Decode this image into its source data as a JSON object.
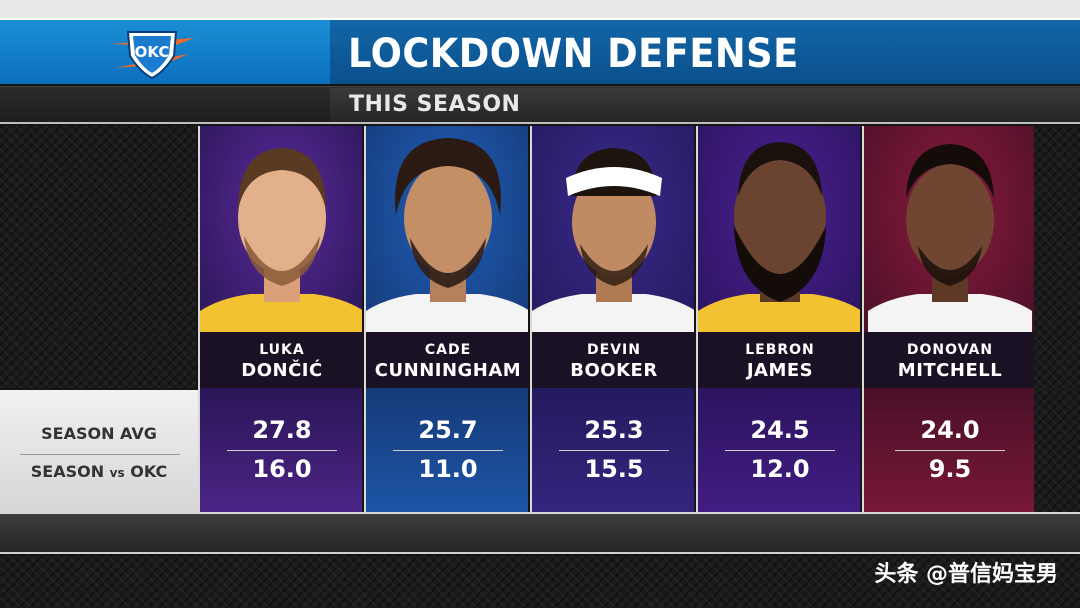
{
  "header": {
    "title": "LOCKDOWN DEFENSE",
    "subtitle": "THIS SEASON",
    "team_logo_text": "OKC"
  },
  "row_labels": {
    "season_avg": "SEASON AVG",
    "season_vs_okc_prefix": "SEASON",
    "season_vs_okc_vs": "vs",
    "season_vs_okc_team": "OKC"
  },
  "players": [
    {
      "first": "LUKA",
      "last": "DONČIĆ",
      "season_avg": "27.8",
      "season_vs_okc": "16.0",
      "color_top": "#5a2a9a",
      "color_bottom": "#2a1656"
    },
    {
      "first": "CADE",
      "last": "CUNNINGHAM",
      "season_avg": "25.7",
      "season_vs_okc": "11.0",
      "color_top": "#1f5fb8",
      "color_bottom": "#163a78"
    },
    {
      "first": "DEVIN",
      "last": "BOOKER",
      "season_avg": "25.3",
      "season_vs_okc": "15.5",
      "color_top": "#3a2a8a",
      "color_bottom": "#241a5e"
    },
    {
      "first": "LEBRON",
      "last": "JAMES",
      "season_avg": "24.5",
      "season_vs_okc": "12.0",
      "color_top": "#4a2090",
      "color_bottom": "#2c1460"
    },
    {
      "first": "DONOVAN",
      "last": "MITCHELL",
      "season_avg": "24.0",
      "season_vs_okc": "9.5",
      "color_top": "#8a1a3e",
      "color_bottom": "#4a1028"
    }
  ],
  "watermark": "头条 @普信妈宝男",
  "colors": {
    "header_blue": "#0b6fbd",
    "accent_orange": "#ef6a2b"
  }
}
